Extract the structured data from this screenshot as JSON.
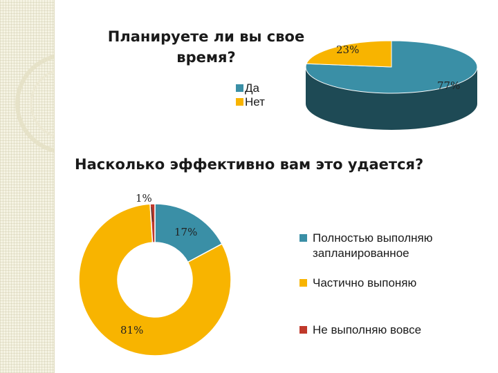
{
  "colors": {
    "teal": "#3a8fa6",
    "teal_dark": "#1e4a55",
    "yellow": "#f8b400",
    "yellow_dark": "#8a6a00",
    "red": "#c0392b",
    "side_strip": "#f5f3e3"
  },
  "decor": {
    "side_strip": "side-pattern"
  },
  "chart_data": [
    {
      "type": "pie",
      "style": "3d",
      "title": "Планируете ли вы свое время?",
      "categories": [
        "Да",
        "Нет"
      ],
      "values": [
        77,
        23
      ],
      "labels": [
        "77%",
        "23%"
      ],
      "colors": [
        "#3a8fa6",
        "#f8b400"
      ],
      "legend_position": "left"
    },
    {
      "type": "pie",
      "style": "donut",
      "title": "Насколько эффективно вам это удается?",
      "categories": [
        "Полностью выполняю запланированное",
        "Частично выпоняю",
        "Не выполняю вовсе"
      ],
      "values": [
        17,
        81,
        1
      ],
      "labels": [
        "17%",
        "81%",
        "1%"
      ],
      "colors": [
        "#3a8fa6",
        "#f8b400",
        "#c0392b"
      ],
      "legend_position": "right"
    }
  ]
}
